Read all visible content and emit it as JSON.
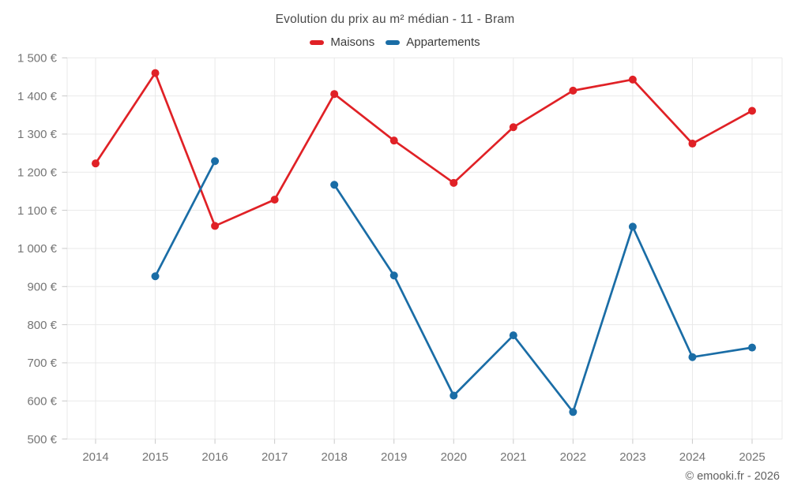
{
  "chart": {
    "title": "Evolution du prix au m² médian - 11 - Bram",
    "footer": "© emooki.fr - 2026"
  },
  "chart_data": {
    "type": "line",
    "title": "Evolution du prix au m² médian - 11 - Bram",
    "categories": [
      "2014",
      "2015",
      "2016",
      "2017",
      "2018",
      "2019",
      "2020",
      "2021",
      "2022",
      "2023",
      "2024",
      "2025"
    ],
    "series": [
      {
        "name": "Maisons",
        "color": "#e02126",
        "values": [
          1223,
          1460,
          1059,
          1128,
          1405,
          1283,
          1172,
          1318,
          1414,
          1443,
          1275,
          1361
        ]
      },
      {
        "name": "Appartements",
        "color": "#1a6da6",
        "values": [
          null,
          927,
          1229,
          null,
          1167,
          929,
          614,
          772,
          571,
          1057,
          715,
          740
        ]
      }
    ],
    "xlabel": "",
    "ylabel": "",
    "ylim": [
      500,
      1500
    ],
    "ytick_step": 100,
    "ytick_suffix": " €",
    "grid": true,
    "legend_position": "top",
    "grid_color": "#e9e9e9",
    "tick_color": "#c9c9c9",
    "tick_label_color": "#757575"
  }
}
